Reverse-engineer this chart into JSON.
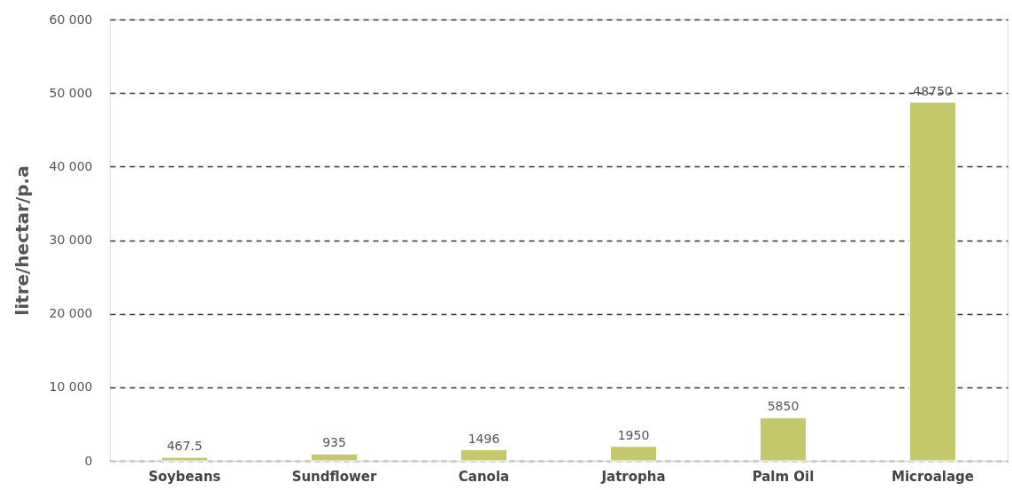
{
  "chart_data": {
    "type": "bar",
    "ylabel": "litre/hectar/p.a",
    "categories": [
      "Soybeans",
      "Sundflower",
      "Canola",
      "Jatropha",
      "Palm Oil",
      "Microalage"
    ],
    "values": [
      467.5,
      935,
      1496,
      1950,
      5850,
      48750
    ],
    "color": "#c5c76b",
    "ylim": [
      0,
      60000
    ],
    "yticks": [
      0,
      {
        "value": 10000,
        "label": "10 000"
      },
      {
        "value": 20000,
        "label": "20 000"
      },
      {
        "value": 30000,
        "label": "30 000"
      },
      {
        "value": 40000,
        "label": "40 000"
      },
      {
        "value": 50000,
        "label": "50 000"
      },
      {
        "value": 60000,
        "label": "60 000"
      }
    ],
    "grid": "y",
    "data_labels": true
  }
}
